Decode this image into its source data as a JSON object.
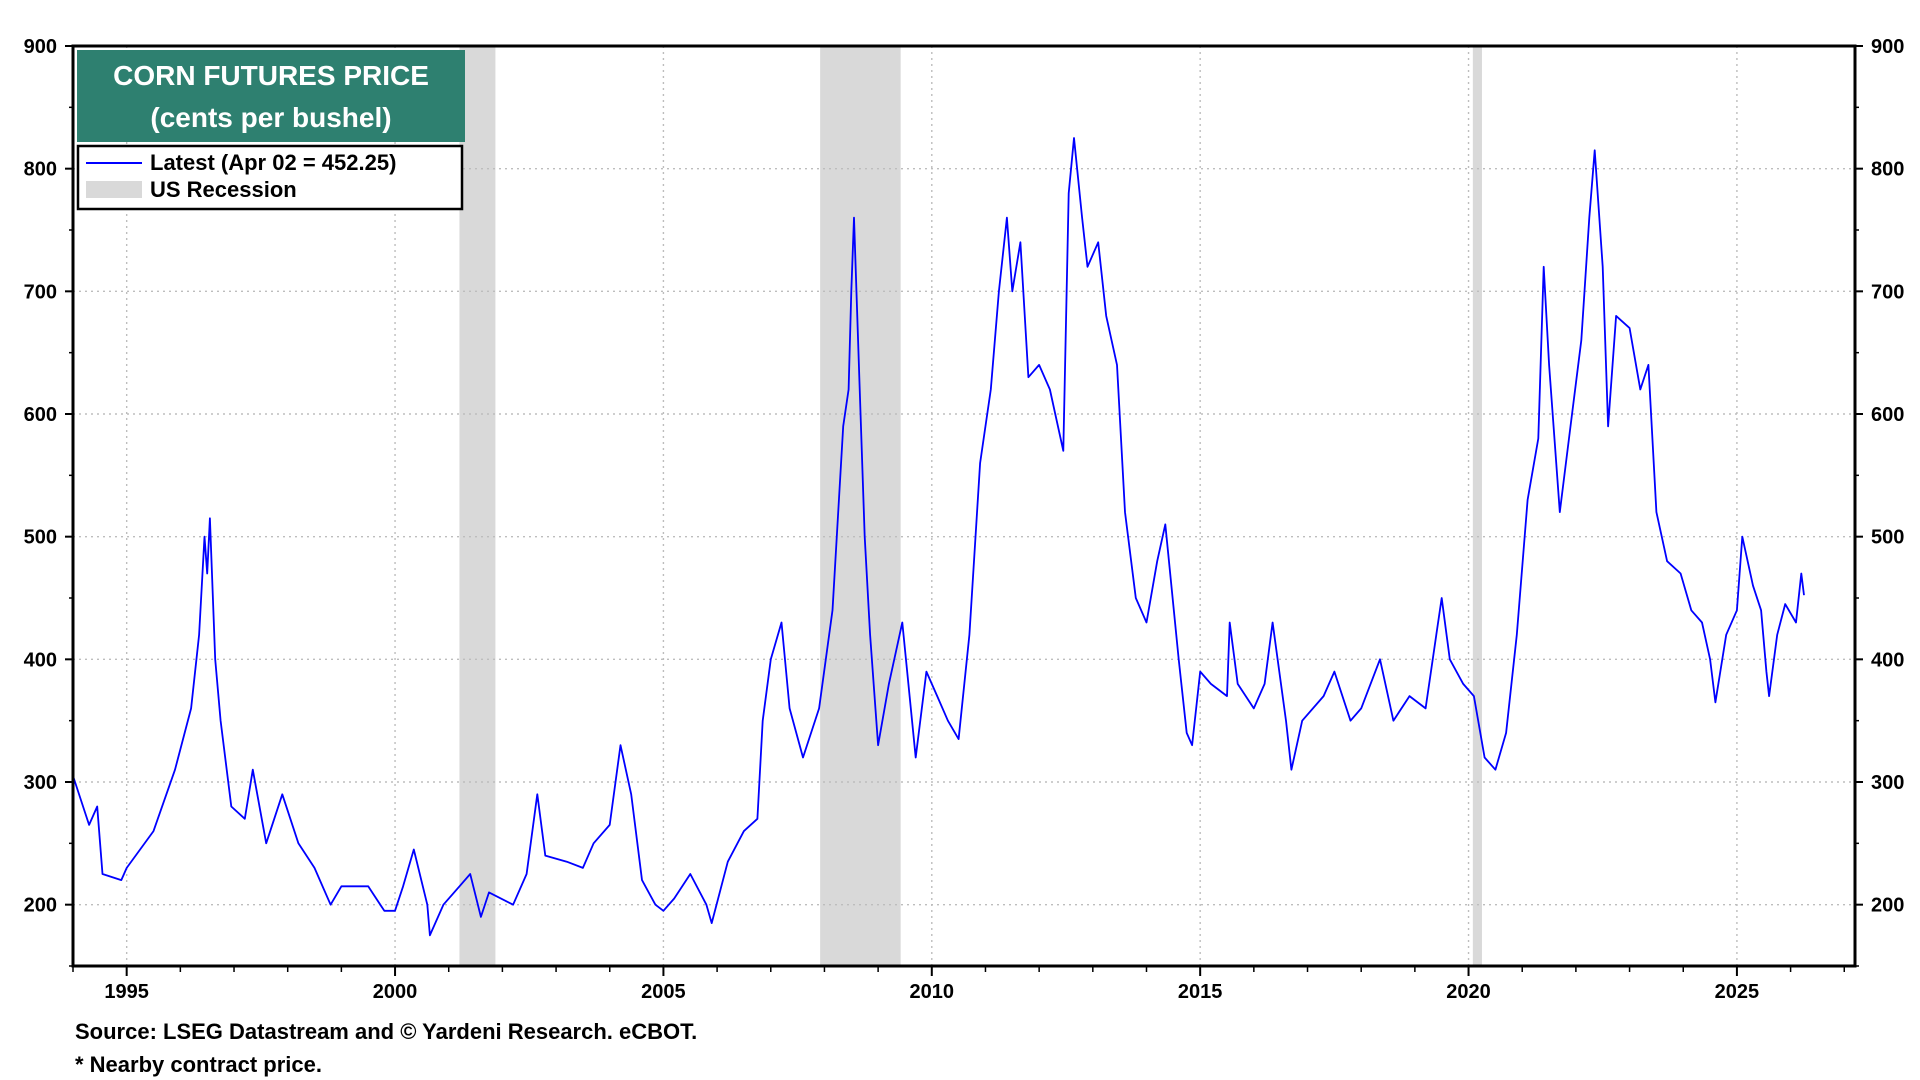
{
  "chart_data": {
    "type": "line",
    "title": "CORN FUTURES PRICE",
    "subtitle": "(cents per bushel)",
    "legend": {
      "placement": "top-left",
      "items": [
        {
          "label": "Latest (Apr 02 = 452.25)",
          "kind": "line",
          "color": "#0000ff"
        },
        {
          "label": "US Recession",
          "kind": "band",
          "color": "#d9d9d9"
        }
      ]
    },
    "x_range": [
      1994.0,
      2027.2
    ],
    "ylim": [
      150,
      900
    ],
    "y_ticks": [
      200,
      300,
      400,
      500,
      600,
      700,
      800,
      900
    ],
    "y_tick_labels": [
      "200",
      "300",
      "400",
      "500",
      "600",
      "700",
      "800",
      "900"
    ],
    "x_ticks": [
      1995,
      2000,
      2005,
      2010,
      2015,
      2020,
      2025
    ],
    "x_tick_labels": [
      "1995",
      "2000",
      "2005",
      "2010",
      "2015",
      "2020",
      "2025"
    ],
    "grid": true,
    "recessions": [
      {
        "start": 2001.2,
        "end": 2001.87
      },
      {
        "start": 2007.92,
        "end": 2009.42
      },
      {
        "start": 2020.08,
        "end": 2020.25
      }
    ],
    "series": [
      {
        "name": "Latest (Apr 02 = 452.25)",
        "color": "#0000ff",
        "points": [
          [
            1994.0,
            305
          ],
          [
            1994.3,
            265
          ],
          [
            1994.45,
            280
          ],
          [
            1994.55,
            225
          ],
          [
            1994.9,
            220
          ],
          [
            1995.0,
            230
          ],
          [
            1995.5,
            260
          ],
          [
            1995.9,
            310
          ],
          [
            1996.2,
            360
          ],
          [
            1996.35,
            420
          ],
          [
            1996.45,
            500
          ],
          [
            1996.5,
            470
          ],
          [
            1996.55,
            515
          ],
          [
            1996.65,
            400
          ],
          [
            1996.75,
            350
          ],
          [
            1996.95,
            280
          ],
          [
            1997.2,
            270
          ],
          [
            1997.35,
            310
          ],
          [
            1997.6,
            250
          ],
          [
            1997.9,
            290
          ],
          [
            1998.2,
            250
          ],
          [
            1998.5,
            230
          ],
          [
            1998.8,
            200
          ],
          [
            1999.0,
            215
          ],
          [
            1999.5,
            215
          ],
          [
            1999.8,
            195
          ],
          [
            2000.0,
            195
          ],
          [
            2000.15,
            215
          ],
          [
            2000.35,
            245
          ],
          [
            2000.6,
            200
          ],
          [
            2000.65,
            175
          ],
          [
            2000.9,
            200
          ],
          [
            2001.2,
            215
          ],
          [
            2001.4,
            225
          ],
          [
            2001.6,
            190
          ],
          [
            2001.75,
            210
          ],
          [
            2002.2,
            200
          ],
          [
            2002.45,
            225
          ],
          [
            2002.65,
            290
          ],
          [
            2002.8,
            240
          ],
          [
            2003.2,
            235
          ],
          [
            2003.5,
            230
          ],
          [
            2003.7,
            250
          ],
          [
            2004.0,
            265
          ],
          [
            2004.2,
            330
          ],
          [
            2004.4,
            290
          ],
          [
            2004.6,
            220
          ],
          [
            2004.85,
            200
          ],
          [
            2005.0,
            195
          ],
          [
            2005.2,
            205
          ],
          [
            2005.5,
            225
          ],
          [
            2005.8,
            200
          ],
          [
            2005.9,
            185
          ],
          [
            2006.2,
            235
          ],
          [
            2006.5,
            260
          ],
          [
            2006.75,
            270
          ],
          [
            2006.85,
            350
          ],
          [
            2007.0,
            400
          ],
          [
            2007.2,
            430
          ],
          [
            2007.35,
            360
          ],
          [
            2007.6,
            320
          ],
          [
            2007.9,
            360
          ],
          [
            2008.15,
            440
          ],
          [
            2008.35,
            590
          ],
          [
            2008.45,
            620
          ],
          [
            2008.5,
            700
          ],
          [
            2008.55,
            760
          ],
          [
            2008.65,
            630
          ],
          [
            2008.75,
            500
          ],
          [
            2008.85,
            420
          ],
          [
            2009.0,
            330
          ],
          [
            2009.2,
            380
          ],
          [
            2009.45,
            430
          ],
          [
            2009.7,
            320
          ],
          [
            2009.9,
            390
          ],
          [
            2010.1,
            370
          ],
          [
            2010.3,
            350
          ],
          [
            2010.5,
            335
          ],
          [
            2010.7,
            420
          ],
          [
            2010.9,
            560
          ],
          [
            2011.1,
            620
          ],
          [
            2011.25,
            700
          ],
          [
            2011.4,
            760
          ],
          [
            2011.5,
            700
          ],
          [
            2011.65,
            740
          ],
          [
            2011.8,
            630
          ],
          [
            2012.0,
            640
          ],
          [
            2012.2,
            620
          ],
          [
            2012.45,
            570
          ],
          [
            2012.55,
            780
          ],
          [
            2012.65,
            825
          ],
          [
            2012.8,
            760
          ],
          [
            2012.9,
            720
          ],
          [
            2013.1,
            740
          ],
          [
            2013.25,
            680
          ],
          [
            2013.45,
            640
          ],
          [
            2013.6,
            520
          ],
          [
            2013.8,
            450
          ],
          [
            2014.0,
            430
          ],
          [
            2014.2,
            480
          ],
          [
            2014.35,
            510
          ],
          [
            2014.6,
            400
          ],
          [
            2014.75,
            340
          ],
          [
            2014.85,
            330
          ],
          [
            2015.0,
            390
          ],
          [
            2015.2,
            380
          ],
          [
            2015.5,
            370
          ],
          [
            2015.55,
            430
          ],
          [
            2015.7,
            380
          ],
          [
            2016.0,
            360
          ],
          [
            2016.2,
            380
          ],
          [
            2016.35,
            430
          ],
          [
            2016.6,
            350
          ],
          [
            2016.7,
            310
          ],
          [
            2016.9,
            350
          ],
          [
            2017.3,
            370
          ],
          [
            2017.5,
            390
          ],
          [
            2017.8,
            350
          ],
          [
            2018.0,
            360
          ],
          [
            2018.35,
            400
          ],
          [
            2018.6,
            350
          ],
          [
            2018.9,
            370
          ],
          [
            2019.2,
            360
          ],
          [
            2019.4,
            420
          ],
          [
            2019.5,
            450
          ],
          [
            2019.65,
            400
          ],
          [
            2019.9,
            380
          ],
          [
            2020.1,
            370
          ],
          [
            2020.3,
            320
          ],
          [
            2020.5,
            310
          ],
          [
            2020.7,
            340
          ],
          [
            2020.9,
            420
          ],
          [
            2021.1,
            530
          ],
          [
            2021.3,
            580
          ],
          [
            2021.4,
            720
          ],
          [
            2021.5,
            640
          ],
          [
            2021.7,
            520
          ],
          [
            2021.9,
            590
          ],
          [
            2022.1,
            660
          ],
          [
            2022.25,
            760
          ],
          [
            2022.35,
            815
          ],
          [
            2022.5,
            720
          ],
          [
            2022.6,
            590
          ],
          [
            2022.75,
            680
          ],
          [
            2023.0,
            670
          ],
          [
            2023.2,
            620
          ],
          [
            2023.35,
            640
          ],
          [
            2023.5,
            520
          ],
          [
            2023.7,
            480
          ],
          [
            2023.95,
            470
          ],
          [
            2024.15,
            440
          ],
          [
            2024.35,
            430
          ],
          [
            2024.5,
            400
          ],
          [
            2024.6,
            365
          ],
          [
            2024.8,
            420
          ],
          [
            2025.0,
            440
          ],
          [
            2025.1,
            500
          ],
          [
            2025.3,
            460
          ],
          [
            2025.45,
            440
          ],
          [
            2025.55,
            390
          ],
          [
            2025.6,
            370
          ],
          [
            2025.75,
            420
          ],
          [
            2025.9,
            445
          ],
          [
            2026.1,
            430
          ],
          [
            2026.2,
            470
          ],
          [
            2026.25,
            452.25
          ]
        ]
      }
    ],
    "annotations": [
      "Source: LSEG Datastream and © Yardeni Research. eCBOT.",
      "* Nearby contract price."
    ]
  }
}
